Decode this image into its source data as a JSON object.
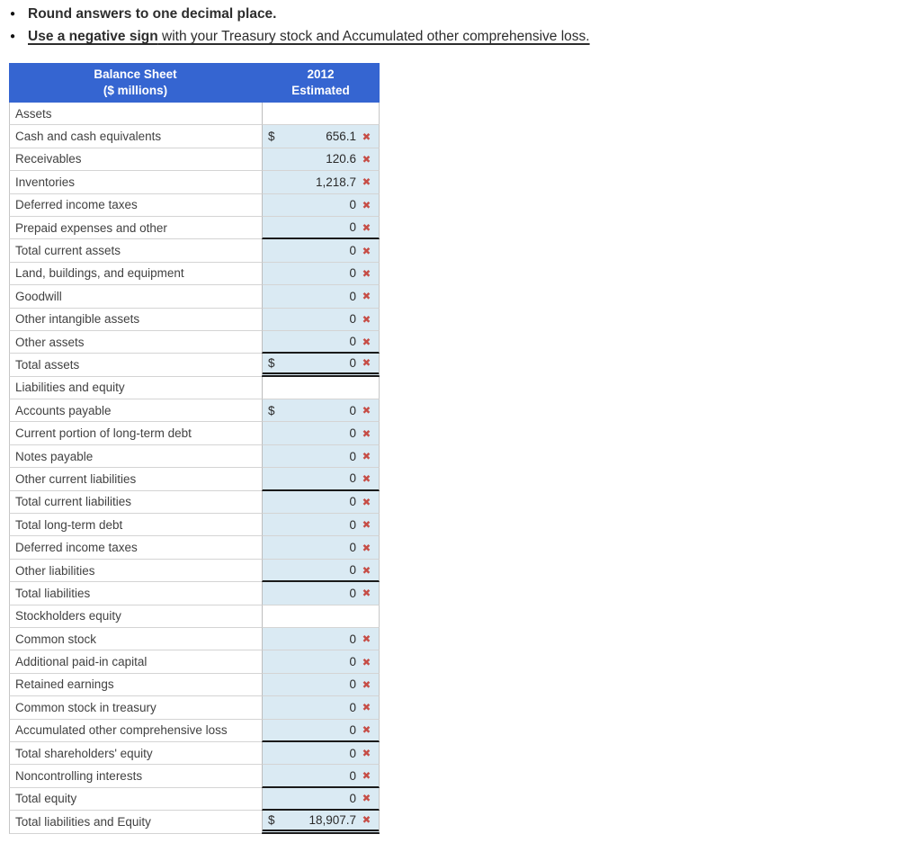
{
  "instructions": [
    {
      "bold": "Round answers to one decimal place.",
      "rest": "",
      "underlined": false
    },
    {
      "bold": "Use a negative sign",
      "rest": " with your Treasury stock and Accumulated other comprehensive loss.",
      "underlined": true
    }
  ],
  "icons": {
    "incorrect": "✖",
    "bullet": "●"
  },
  "colors": {
    "header_blue": "#3565d1",
    "input_cell_blue": "#daeaf3",
    "incorrect_red": "#c64d46"
  },
  "table": {
    "currency_symbol": "$",
    "header": {
      "label_line1": "Balance Sheet",
      "label_line2": "($ millions)",
      "value_line1": "2012",
      "value_line2": "Estimated"
    },
    "rows": [
      {
        "label": "Assets",
        "type": "section"
      },
      {
        "label": "Cash and cash equivalents",
        "type": "input",
        "dollar": true,
        "value": "656.1",
        "mark": "incorrect",
        "underline": "none"
      },
      {
        "label": "Receivables",
        "type": "input",
        "dollar": false,
        "value": "120.6",
        "mark": "incorrect",
        "underline": "none"
      },
      {
        "label": "Inventories",
        "type": "input",
        "dollar": false,
        "value": "1,218.7",
        "mark": "incorrect",
        "underline": "none"
      },
      {
        "label": "Deferred income taxes",
        "type": "input",
        "dollar": false,
        "value": "0",
        "mark": "incorrect",
        "underline": "none"
      },
      {
        "label": "Prepaid expenses and other",
        "type": "input",
        "dollar": false,
        "value": "0",
        "mark": "incorrect",
        "underline": "single"
      },
      {
        "label": "Total current assets",
        "type": "input",
        "dollar": false,
        "value": "0",
        "mark": "incorrect",
        "underline": "none"
      },
      {
        "label": "Land, buildings, and equipment",
        "type": "input",
        "dollar": false,
        "value": "0",
        "mark": "incorrect",
        "underline": "none"
      },
      {
        "label": "Goodwill",
        "type": "input",
        "dollar": false,
        "value": "0",
        "mark": "incorrect",
        "underline": "none"
      },
      {
        "label": "Other intangible assets",
        "type": "input",
        "dollar": false,
        "value": "0",
        "mark": "incorrect",
        "underline": "none"
      },
      {
        "label": "Other assets",
        "type": "input",
        "dollar": false,
        "value": "0",
        "mark": "incorrect",
        "underline": "single"
      },
      {
        "label": "Total assets",
        "type": "input",
        "dollar": true,
        "value": "0",
        "mark": "incorrect",
        "underline": "double"
      },
      {
        "label": "Liabilities and equity",
        "type": "section"
      },
      {
        "label": "Accounts payable",
        "type": "input",
        "dollar": true,
        "value": "0",
        "mark": "incorrect",
        "underline": "none"
      },
      {
        "label": "Current portion of long-term debt",
        "type": "input",
        "dollar": false,
        "value": "0",
        "mark": "incorrect",
        "underline": "none"
      },
      {
        "label": "Notes payable",
        "type": "input",
        "dollar": false,
        "value": "0",
        "mark": "incorrect",
        "underline": "none"
      },
      {
        "label": "Other current liabilities",
        "type": "input",
        "dollar": false,
        "value": "0",
        "mark": "incorrect",
        "underline": "single"
      },
      {
        "label": "Total current liabilities",
        "type": "input",
        "dollar": false,
        "value": "0",
        "mark": "incorrect",
        "underline": "none"
      },
      {
        "label": "Total long-term debt",
        "type": "input",
        "dollar": false,
        "value": "0",
        "mark": "incorrect",
        "underline": "none"
      },
      {
        "label": "Deferred income taxes",
        "type": "input",
        "dollar": false,
        "value": "0",
        "mark": "incorrect",
        "underline": "none"
      },
      {
        "label": "Other liabilities",
        "type": "input",
        "dollar": false,
        "value": "0",
        "mark": "incorrect",
        "underline": "single"
      },
      {
        "label": "Total liabilities",
        "type": "input",
        "dollar": false,
        "value": "0",
        "mark": "incorrect",
        "underline": "none"
      },
      {
        "label": "Stockholders equity",
        "type": "section"
      },
      {
        "label": "Common stock",
        "type": "input",
        "dollar": false,
        "value": "0",
        "mark": "incorrect",
        "underline": "none"
      },
      {
        "label": "Additional paid-in capital",
        "type": "input",
        "dollar": false,
        "value": "0",
        "mark": "incorrect",
        "underline": "none"
      },
      {
        "label": "Retained earnings",
        "type": "input",
        "dollar": false,
        "value": "0",
        "mark": "incorrect",
        "underline": "none"
      },
      {
        "label": "Common stock in treasury",
        "type": "input",
        "dollar": false,
        "value": "0",
        "mark": "incorrect",
        "underline": "none"
      },
      {
        "label": "Accumulated other comprehensive loss",
        "type": "input",
        "dollar": false,
        "value": "0",
        "mark": "incorrect",
        "underline": "single"
      },
      {
        "label": "Total shareholders' equity",
        "type": "input",
        "dollar": false,
        "value": "0",
        "mark": "incorrect",
        "underline": "none"
      },
      {
        "label": "Noncontrolling interests",
        "type": "input",
        "dollar": false,
        "value": "0",
        "mark": "incorrect",
        "underline": "single"
      },
      {
        "label": "Total equity",
        "type": "input",
        "dollar": false,
        "value": "0",
        "mark": "incorrect",
        "underline": "single"
      },
      {
        "label": "Total liabilities and Equity",
        "type": "input",
        "dollar": true,
        "value": "18,907.7",
        "mark": "incorrect",
        "underline": "double"
      }
    ]
  }
}
